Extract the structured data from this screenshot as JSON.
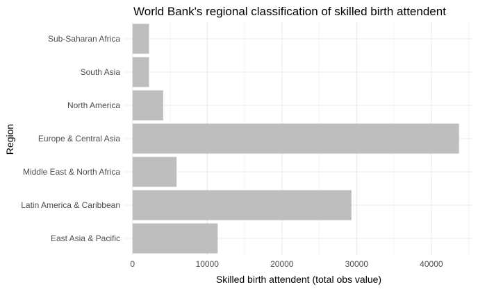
{
  "chart_data": {
    "type": "bar",
    "orientation": "horizontal",
    "title": "World Bank's regional classification of skilled birth attendent",
    "xlabel": "Skilled birth attendent (total obs value)",
    "ylabel": "Region",
    "categories": [
      "East Asia & Pacific",
      "Latin America & Caribbean",
      "Middle East & North Africa",
      "Europe & Central Asia",
      "North America",
      "South Asia",
      "Sub-Saharan Africa"
    ],
    "values": [
      11400,
      29300,
      5900,
      43700,
      4100,
      2200,
      2200
    ],
    "xlim": [
      -1000,
      45500
    ],
    "xticks": [
      0,
      10000,
      20000,
      30000,
      40000
    ],
    "xtick_labels": [
      "0",
      "10000",
      "20000",
      "30000",
      "40000"
    ],
    "grid": true,
    "legend": "none",
    "colors": {
      "bar": "#bebebe",
      "grid_major": "#ebebeb",
      "grid_minor": "#f2f2f2",
      "background": "#ffffff"
    }
  }
}
